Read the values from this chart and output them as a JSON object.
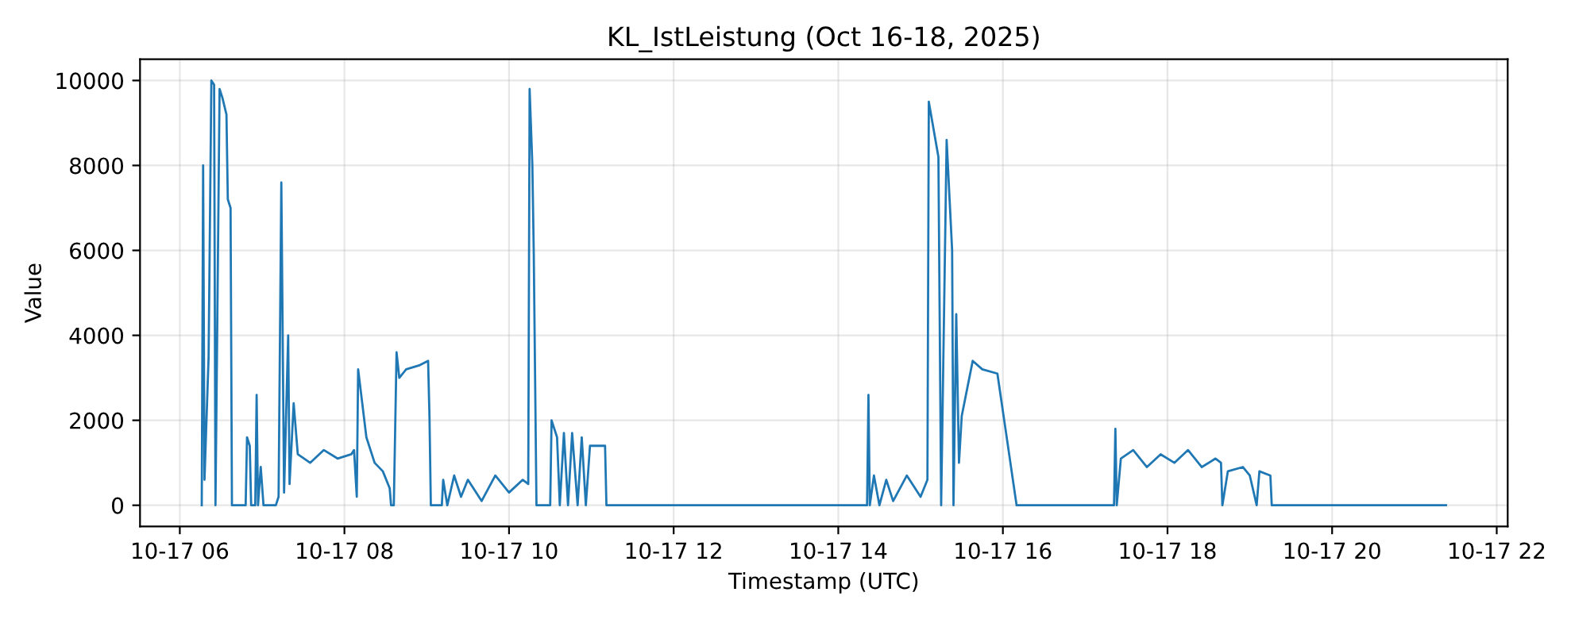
{
  "chart_data": {
    "type": "line",
    "title": "KL_IstLeistung (Oct 16-18, 2025)",
    "xlabel": "Timestamp (UTC)",
    "ylabel": "Value",
    "grid": true,
    "marker": "none",
    "line_style": "solid",
    "xlim": [
      "2025-10-17T05:31",
      "2025-10-17T22:08"
    ],
    "xticks": [
      {
        "value": "2025-10-17T06:00",
        "label": "10-17 06"
      },
      {
        "value": "2025-10-17T08:00",
        "label": "10-17 08"
      },
      {
        "value": "2025-10-17T10:00",
        "label": "10-17 10"
      },
      {
        "value": "2025-10-17T12:00",
        "label": "10-17 12"
      },
      {
        "value": "2025-10-17T14:00",
        "label": "10-17 14"
      },
      {
        "value": "2025-10-17T16:00",
        "label": "10-17 16"
      },
      {
        "value": "2025-10-17T18:00",
        "label": "10-17 18"
      },
      {
        "value": "2025-10-17T20:00",
        "label": "10-17 20"
      },
      {
        "value": "2025-10-17T22:00",
        "label": "10-17 22"
      }
    ],
    "ylim": [
      -500,
      10500
    ],
    "yticks": [
      0,
      2000,
      4000,
      6000,
      8000,
      10000
    ],
    "series": [
      {
        "color": "#1f77b4",
        "x": [
          "2025-10-17T06:16",
          "2025-10-17T06:17",
          "2025-10-17T06:18",
          "2025-10-17T06:21",
          "2025-10-17T06:23",
          "2025-10-17T06:25",
          "2025-10-17T06:26",
          "2025-10-17T06:29",
          "2025-10-17T06:31",
          "2025-10-17T06:34",
          "2025-10-17T06:35",
          "2025-10-17T06:37",
          "2025-10-17T06:38",
          "2025-10-17T06:48",
          "2025-10-17T06:49",
          "2025-10-17T06:51",
          "2025-10-17T06:52",
          "2025-10-17T06:55",
          "2025-10-17T06:56",
          "2025-10-17T06:57",
          "2025-10-17T06:59",
          "2025-10-17T07:01",
          "2025-10-17T07:10",
          "2025-10-17T07:12",
          "2025-10-17T07:14",
          "2025-10-17T07:16",
          "2025-10-17T07:19",
          "2025-10-17T07:20",
          "2025-10-17T07:23",
          "2025-10-17T07:26",
          "2025-10-17T07:35",
          "2025-10-17T07:45",
          "2025-10-17T07:55",
          "2025-10-17T08:05",
          "2025-10-17T08:07",
          "2025-10-17T08:09",
          "2025-10-17T08:10",
          "2025-10-17T08:16",
          "2025-10-17T08:22",
          "2025-10-17T08:28",
          "2025-10-17T08:33",
          "2025-10-17T08:34",
          "2025-10-17T08:36",
          "2025-10-17T08:38",
          "2025-10-17T08:40",
          "2025-10-17T08:45",
          "2025-10-17T08:55",
          "2025-10-17T09:01",
          "2025-10-17T09:02",
          "2025-10-17T09:03",
          "2025-10-17T09:11",
          "2025-10-17T09:12",
          "2025-10-17T09:15",
          "2025-10-17T09:20",
          "2025-10-17T09:25",
          "2025-10-17T09:30",
          "2025-10-17T09:40",
          "2025-10-17T09:50",
          "2025-10-17T10:00",
          "2025-10-17T10:10",
          "2025-10-17T10:14",
          "2025-10-17T10:15",
          "2025-10-17T10:17",
          "2025-10-17T10:18",
          "2025-10-17T10:19",
          "2025-10-17T10:20",
          "2025-10-17T10:30",
          "2025-10-17T10:31",
          "2025-10-17T10:35",
          "2025-10-17T10:37",
          "2025-10-17T10:40",
          "2025-10-17T10:43",
          "2025-10-17T10:46",
          "2025-10-17T10:50",
          "2025-10-17T10:53",
          "2025-10-17T10:56",
          "2025-10-17T10:59",
          "2025-10-17T11:10",
          "2025-10-17T11:11",
          "2025-10-17T14:21",
          "2025-10-17T14:22",
          "2025-10-17T14:23",
          "2025-10-17T14:26",
          "2025-10-17T14:30",
          "2025-10-17T14:35",
          "2025-10-17T14:40",
          "2025-10-17T14:50",
          "2025-10-17T15:00",
          "2025-10-17T15:05",
          "2025-10-17T15:06",
          "2025-10-17T15:13",
          "2025-10-17T15:15",
          "2025-10-17T15:19",
          "2025-10-17T15:23",
          "2025-10-17T15:24",
          "2025-10-17T15:26",
          "2025-10-17T15:28",
          "2025-10-17T15:30",
          "2025-10-17T15:38",
          "2025-10-17T15:45",
          "2025-10-17T15:56",
          "2025-10-17T16:10",
          "2025-10-17T17:21",
          "2025-10-17T17:22",
          "2025-10-17T17:23",
          "2025-10-17T17:26",
          "2025-10-17T17:35",
          "2025-10-17T17:45",
          "2025-10-17T17:55",
          "2025-10-17T18:05",
          "2025-10-17T18:15",
          "2025-10-17T18:25",
          "2025-10-17T18:35",
          "2025-10-17T18:39",
          "2025-10-17T18:40",
          "2025-10-17T18:44",
          "2025-10-17T18:55",
          "2025-10-17T19:00",
          "2025-10-17T19:05",
          "2025-10-17T19:07",
          "2025-10-17T19:15",
          "2025-10-17T19:16",
          "2025-10-17T21:23"
        ],
        "values": [
          0,
          8000,
          600,
          3500,
          10000,
          9900,
          0,
          9800,
          9600,
          9200,
          7200,
          7000,
          0,
          0,
          1600,
          1400,
          0,
          0,
          2600,
          0,
          900,
          0,
          0,
          200,
          7600,
          300,
          4000,
          500,
          2400,
          1200,
          1000,
          1300,
          1100,
          1200,
          1300,
          200,
          3200,
          1600,
          1000,
          800,
          400,
          0,
          0,
          3600,
          3000,
          3200,
          3300,
          3400,
          2100,
          0,
          0,
          600,
          0,
          700,
          200,
          600,
          100,
          700,
          300,
          600,
          500,
          9800,
          8000,
          6000,
          3000,
          0,
          0,
          2000,
          1600,
          0,
          1700,
          0,
          1700,
          0,
          1600,
          0,
          1400,
          1400,
          0,
          0,
          2600,
          0,
          700,
          0,
          600,
          100,
          700,
          200,
          600,
          9500,
          8200,
          0,
          8600,
          6000,
          0,
          4500,
          1000,
          2100,
          3400,
          3200,
          3100,
          0,
          0,
          1800,
          0,
          1100,
          1300,
          900,
          1200,
          1000,
          1300,
          900,
          1100,
          1000,
          0,
          800,
          900,
          700,
          0,
          800,
          700,
          0,
          0
        ]
      }
    ]
  }
}
